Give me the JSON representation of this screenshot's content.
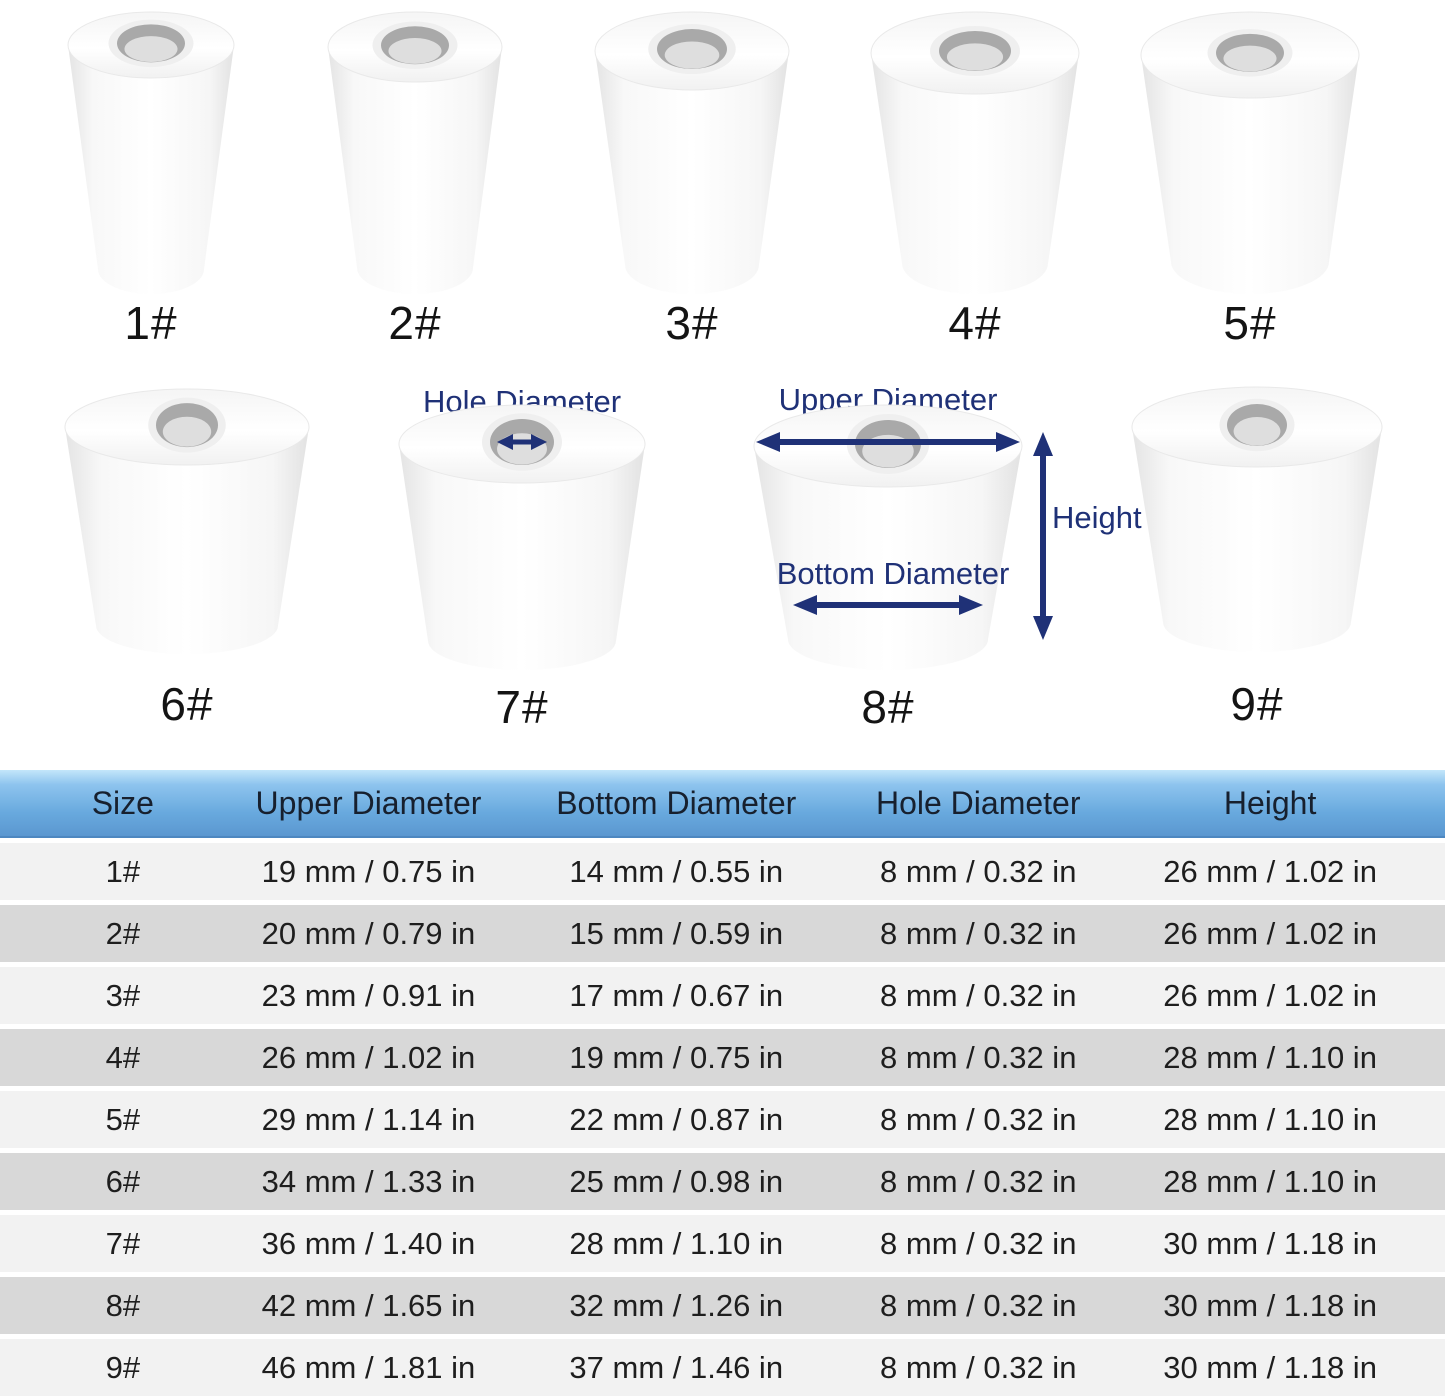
{
  "figures": {
    "items": [
      {
        "label": "1#"
      },
      {
        "label": "2#"
      },
      {
        "label": "3#"
      },
      {
        "label": "4#"
      },
      {
        "label": "5#"
      },
      {
        "label": "6#"
      },
      {
        "label": "7#"
      },
      {
        "label": "8#"
      },
      {
        "label": "9#"
      }
    ]
  },
  "annotations": {
    "hole_diameter_label": "Hole Diameter",
    "upper_diameter_label": "Upper Diameter",
    "bottom_diameter_label": "Bottom Diameter",
    "height_label": "Height"
  },
  "colors": {
    "annotation_navy": "#1f3177",
    "header_gradient_top": "#c3e6fa",
    "header_gradient_bottom": "#5b97d0",
    "row_light": "#f2f2f2",
    "row_dark": "#d8d8d8"
  },
  "table": {
    "headers": [
      "Size",
      "Upper Diameter",
      "Bottom Diameter",
      "Hole Diameter",
      "Height"
    ],
    "rows": [
      [
        "1#",
        "19 mm / 0.75 in",
        "14 mm / 0.55 in",
        "8 mm / 0.32 in",
        "26 mm / 1.02 in"
      ],
      [
        "2#",
        "20 mm / 0.79 in",
        "15 mm / 0.59 in",
        "8 mm / 0.32 in",
        "26 mm / 1.02 in"
      ],
      [
        "3#",
        "23 mm / 0.91 in",
        "17 mm / 0.67 in",
        "8 mm / 0.32 in",
        "26 mm / 1.02 in"
      ],
      [
        "4#",
        "26 mm / 1.02 in",
        "19 mm / 0.75 in",
        "8 mm / 0.32 in",
        "28 mm / 1.10 in"
      ],
      [
        "5#",
        "29 mm / 1.14 in",
        "22 mm / 0.87 in",
        "8 mm / 0.32 in",
        "28 mm / 1.10 in"
      ],
      [
        "6#",
        "34 mm / 1.33 in",
        "25 mm / 0.98 in",
        "8 mm / 0.32 in",
        "28 mm / 1.10 in"
      ],
      [
        "7#",
        "36 mm / 1.40 in",
        "28 mm / 1.10 in",
        "8 mm / 0.32 in",
        "30 mm / 1.18 in"
      ],
      [
        "8#",
        "42 mm / 1.65 in",
        "32 mm / 1.26 in",
        "8 mm / 0.32 in",
        "30 mm / 1.18 in"
      ],
      [
        "9#",
        "46 mm / 1.81 in",
        "37 mm / 1.46 in",
        "8 mm / 0.32 in",
        "30 mm / 1.18 in"
      ]
    ]
  }
}
